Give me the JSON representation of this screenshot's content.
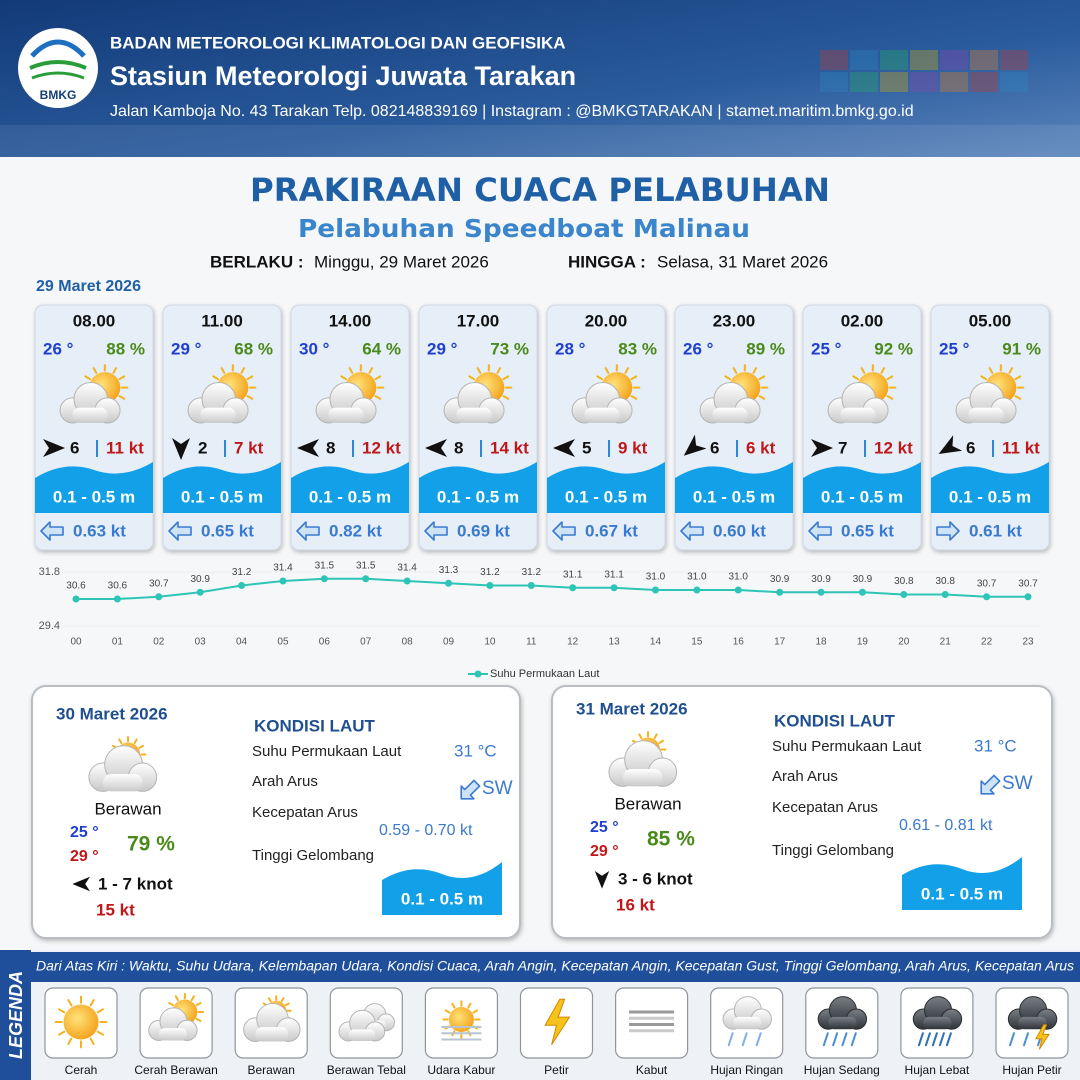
{
  "header": {
    "logo": "BMKG",
    "agency": "BADAN METEOROLOGI KLIMATOLOGI DAN GEOFISIKA",
    "station": "Stasiun Meteorologi Juwata Tarakan",
    "address": "Jalan Kamboja No. 43 Tarakan  Telp. 082148839169 | Instagram : @BMKGTARAKAN | stamet.maritim.bmkg.go.id"
  },
  "title": "PRAKIRAAN CUACA PELABUHAN",
  "subtitle": "Pelabuhan Speedboat Malinau",
  "validity": {
    "from_label": "BERLAKU :",
    "from": "Minggu, 29 Maret 2026",
    "to_label": "HINGGA :",
    "to": "Selasa, 31 Maret 2026"
  },
  "today": {
    "date": "29 Maret 2026",
    "cards": [
      {
        "time": "08.00",
        "temperature": "26 °",
        "humidity": "88 %",
        "wind_speed": "6",
        "gust": "11 kt",
        "wave": "0.1 - 0.5 m",
        "current": "0.63 kt"
      },
      {
        "time": "11.00",
        "temperature": "29 °",
        "humidity": "68 %",
        "wind_speed": "2",
        "gust": "7 kt",
        "wave": "0.1 - 0.5 m",
        "current": "0.65 kt"
      },
      {
        "time": "14.00",
        "temperature": "30 °",
        "humidity": "64 %",
        "wind_speed": "8",
        "gust": "12 kt",
        "wave": "0.1 - 0.5 m",
        "current": "0.82 kt"
      },
      {
        "time": "17.00",
        "temperature": "29 °",
        "humidity": "73 %",
        "wind_speed": "8",
        "gust": "14 kt",
        "wave": "0.1 - 0.5 m",
        "current": "0.69 kt"
      },
      {
        "time": "20.00",
        "temperature": "28 °",
        "humidity": "83 %",
        "wind_speed": "5",
        "gust": "9 kt",
        "wave": "0.1 - 0.5 m",
        "current": "0.67 kt"
      },
      {
        "time": "23.00",
        "temperature": "26 °",
        "humidity": "89 %",
        "wind_speed": "6",
        "gust": "6 kt",
        "wave": "0.1 - 0.5 m",
        "current": "0.60 kt"
      },
      {
        "time": "02.00",
        "temperature": "25 °",
        "humidity": "92 %",
        "wind_speed": "7",
        "gust": "12 kt",
        "wave": "0.1 - 0.5 m",
        "current": "0.65 kt"
      },
      {
        "time": "05.00",
        "temperature": "25 °",
        "humidity": "91 %",
        "wind_speed": "6",
        "gust": "11 kt",
        "wave": "0.1 - 0.5 m",
        "current": "0.61 kt"
      }
    ]
  },
  "chart_data": {
    "type": "line",
    "x": [
      "00",
      "01",
      "02",
      "03",
      "04",
      "05",
      "06",
      "07",
      "08",
      "09",
      "10",
      "11",
      "12",
      "13",
      "14",
      "15",
      "16",
      "17",
      "18",
      "19",
      "20",
      "21",
      "22",
      "23"
    ],
    "series": [
      {
        "name": "Suhu Permukaan Laut",
        "color": "#2ec4b6",
        "values": [
          30.6,
          30.6,
          30.7,
          30.9,
          31.2,
          31.4,
          31.5,
          31.5,
          31.4,
          31.3,
          31.2,
          31.2,
          31.1,
          31.1,
          31.0,
          31.0,
          31.0,
          30.9,
          30.9,
          30.9,
          30.8,
          30.8,
          30.7,
          30.7
        ],
        "value_labels": [
          "30.6",
          "30.6",
          "30.7",
          "30.9",
          "31.2",
          "31.4",
          "31.5",
          "31.5",
          "31.4",
          "31.3",
          "31.2",
          "31.2",
          "31.1",
          "31.1",
          "31.0",
          "31.0",
          "31.0",
          "30.9",
          "30.9",
          "30.9",
          "30.8",
          "30.8",
          "30.7",
          "30.7"
        ]
      }
    ],
    "ylim": [
      29.4,
      31.8
    ],
    "yticks": [
      29.4,
      31.8
    ]
  },
  "outlook": [
    {
      "date": "30 Maret 2026",
      "condition": "Berawan",
      "temp_min": "25 °",
      "temp_max": "29 °",
      "humidity": "79 %",
      "wind": "1  - 7 knot",
      "gust": "15 kt",
      "sea": {
        "heading": "KONDISI LAUT",
        "labels": [
          "Suhu Permukaan Laut",
          "Arah Arus",
          "Kecepatan Arus",
          "Tinggi Gelombang"
        ],
        "sst": "31 °C",
        "current_direction": "SW",
        "current_speed": "0.59 - 0.70 kt",
        "wave": "0.1 - 0.5 m"
      }
    },
    {
      "date": "31 Maret 2026",
      "condition": "Berawan",
      "temp_min": "25 °",
      "temp_max": "29 °",
      "humidity": "85 %",
      "wind": "3  - 6 knot",
      "gust": "16 kt",
      "sea": {
        "heading": "KONDISI LAUT",
        "labels": [
          "Suhu Permukaan Laut",
          "Arah Arus",
          "Kecepatan Arus",
          "Tinggi Gelombang"
        ],
        "sst": "31 °C",
        "current_direction": "SW",
        "current_speed": "0.61 - 0.81 kt",
        "wave": "0.1 - 0.5 m"
      }
    }
  ],
  "legend": {
    "title": "LEGENDA",
    "description": "Dari Atas Kiri : Waktu, Suhu Udara, Kelembapan Udara, Kondisi Cuaca, Arah Angin, Kecepatan Angin, Kecepatan Gust, Tinggi Gelombang, Arah Arus, Kecepatan Arus",
    "items": [
      "Cerah",
      "Cerah Berawan",
      "Berawan",
      "Berawan Tebal",
      "Udara Kabur",
      "Petir",
      "Kabut",
      "Hujan Ringan",
      "Hujan Sedang",
      "Hujan Lebat",
      "Hujan Petir"
    ]
  }
}
